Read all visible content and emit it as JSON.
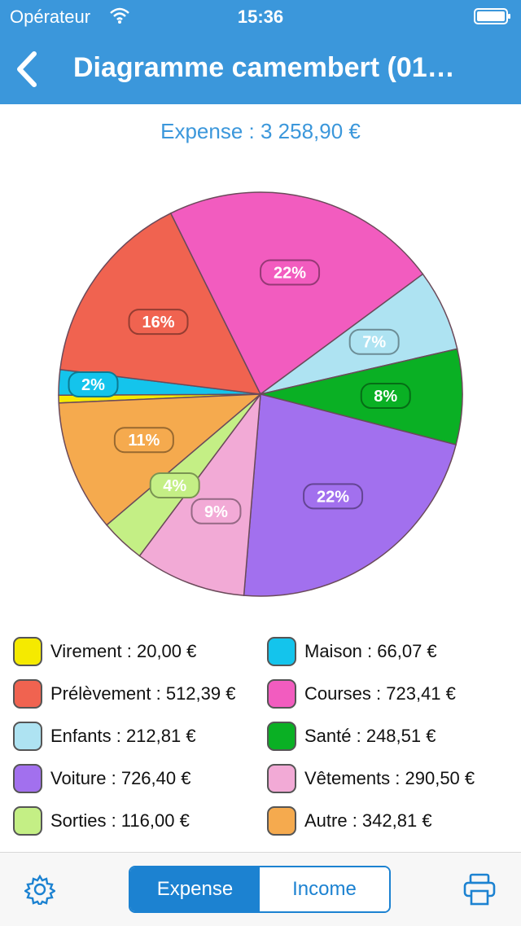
{
  "status_bar": {
    "carrier": "Opérateur",
    "time": "15:36"
  },
  "nav": {
    "title": "Diagramme camembert (01…"
  },
  "subtitle": "Expense : 3 258,90 €",
  "colors": {
    "bar": "#3b97db",
    "accent": "#1c82d1"
  },
  "chart_data": {
    "type": "pie",
    "title": "",
    "slices": [
      {
        "name": "Virement",
        "value": 20.0,
        "label": "",
        "color": "#f5ea00"
      },
      {
        "name": "Maison",
        "value": 66.07,
        "label": "2%",
        "color": "#14c4ec"
      },
      {
        "name": "Prélèvement",
        "value": 512.39,
        "label": "16%",
        "color": "#f06350"
      },
      {
        "name": "Courses",
        "value": 723.41,
        "label": "22%",
        "color": "#f25cbf"
      },
      {
        "name": "Enfants",
        "value": 212.81,
        "label": "7%",
        "color": "#aee3f2"
      },
      {
        "name": "Santé",
        "value": 248.51,
        "label": "8%",
        "color": "#0ab024"
      },
      {
        "name": "Voiture",
        "value": 726.4,
        "label": "22%",
        "color": "#a270ee"
      },
      {
        "name": "Vêtements",
        "value": 290.5,
        "label": "9%",
        "color": "#f2aad6"
      },
      {
        "name": "Sorties",
        "value": 116.0,
        "label": "4%",
        "color": "#c4ef85"
      },
      {
        "name": "Autre",
        "value": 342.81,
        "label": "11%",
        "color": "#f5aa4e"
      }
    ]
  },
  "legend": [
    {
      "text": "Virement : 20,00 €",
      "color": "#f5ea00"
    },
    {
      "text": "Maison : 66,07 €",
      "color": "#14c4ec"
    },
    {
      "text": "Prélèvement : 512,39 €",
      "color": "#f06350"
    },
    {
      "text": "Courses : 723,41 €",
      "color": "#f25cbf"
    },
    {
      "text": "Enfants : 212,81 €",
      "color": "#aee3f2"
    },
    {
      "text": "Santé : 248,51 €",
      "color": "#0ab024"
    },
    {
      "text": "Voiture : 726,40 €",
      "color": "#a270ee"
    },
    {
      "text": "Vêtements : 290,50 €",
      "color": "#f2aad6"
    },
    {
      "text": "Sorties : 116,00 €",
      "color": "#c4ef85"
    },
    {
      "text": "Autre : 342,81 €",
      "color": "#f5aa4e"
    }
  ],
  "toolbar": {
    "expense_label": "Expense",
    "income_label": "Income"
  }
}
